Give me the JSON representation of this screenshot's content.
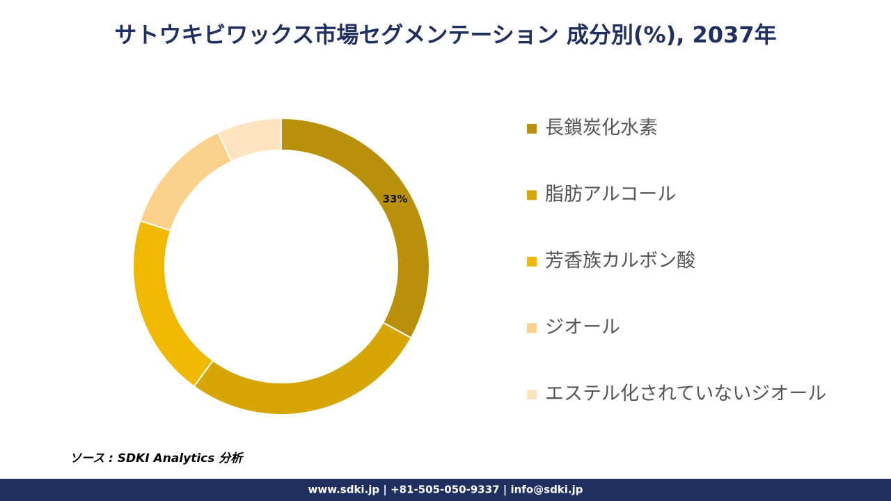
{
  "chart_data": {
    "type": "donut",
    "title": "サトウキビワックス市場セグメンテーション 成分別(%), 2037年",
    "categories": [
      "長鎖炭化水素",
      "脂肪アルコール",
      "芳香族カルボン酸",
      "ジオール",
      "エステル化されていないジオール"
    ],
    "values": [
      33,
      27,
      20,
      13,
      7
    ],
    "value_labels": [
      "33%",
      null,
      null,
      null,
      null
    ],
    "colors": [
      "#b8900a",
      "#d6a604",
      "#f0b800",
      "#fbd08a",
      "#fde3c0"
    ],
    "source": "ソース : SDKI Analytics 分析",
    "footer": "www.sdki.jp | +81-505-050-9337 | info@sdki.jp"
  }
}
